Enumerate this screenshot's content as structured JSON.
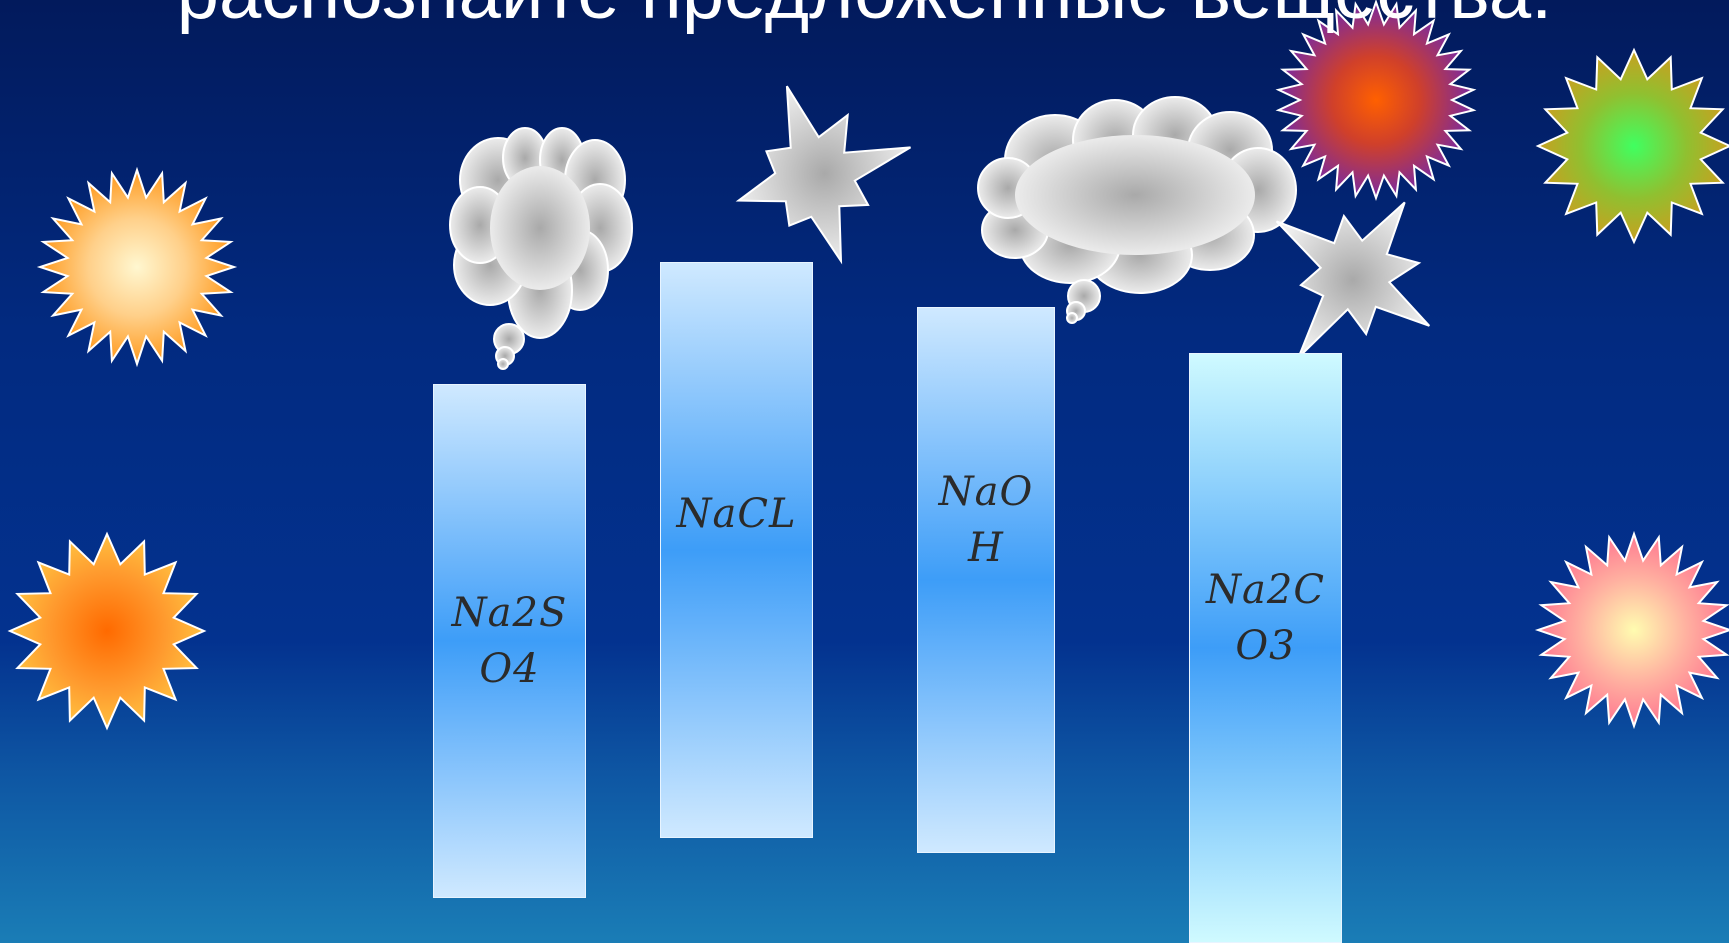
{
  "title": "распознайте предложенные вещества:",
  "tubes": [
    {
      "label": "Na2S\nO4"
    },
    {
      "label": "NaCL"
    },
    {
      "label": "NaO\nH"
    },
    {
      "label": "Na2C\nO3"
    }
  ],
  "colors": {
    "background_top": "#021a5c",
    "background_bottom": "#1a7db6",
    "tube_center": "#3d9df8",
    "tube_edge": "#cfe9ff",
    "label": "#2b2b2b"
  },
  "icons": [
    "sun-orange",
    "sun-yellow",
    "sun-purple",
    "sun-green",
    "sun-pink",
    "cloud",
    "starburst"
  ]
}
